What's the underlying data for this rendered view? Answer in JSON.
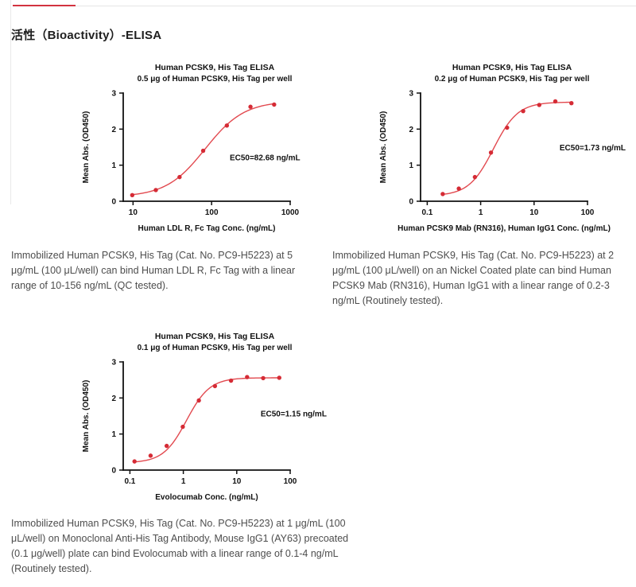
{
  "header": {
    "title": "活性（Bioactivity）-ELISA"
  },
  "tab_indicator": {
    "active_color": "#d2333f",
    "track_color": "#e5e5e5"
  },
  "figures": [
    {
      "caption": "Immobilized Human PCSK9, His Tag (Cat. No. PC9-H5223) at 5 μg/mL (100 μL/well) can bind Human LDL R, Fc Tag with a linear range of 10-156 ng/mL (QC tested)."
    },
    {
      "caption": "Immobilized Human PCSK9, His Tag (Cat. No. PC9-H5223) at 2 μg/mL (100 μL/well) on an Nickel Coated plate can bind Human PCSK9 Mab (RN316), Human IgG1 with a linear range of 0.2-3 ng/mL (Routinely tested)."
    },
    {
      "caption": "Immobilized Human PCSK9, His Tag (Cat. No. PC9-H5223) at 1 μg/mL (100 μL/well) on Monoclonal Anti-His Tag Antibody, Mouse IgG1 (AY63) precoated (0.1 μg/well) plate can bind Evolocumab with a linear range of 0.1-4 ng/mL (Routinely tested)."
    }
  ],
  "chart_data": [
    {
      "type": "scatter",
      "title": "Human PCSK9, His Tag ELISA",
      "subtitle": "0.5 μg of Human PCSK9, His Tag per well",
      "xlabel": "Human LDL R, Fc Tag Conc. (ng/mL)",
      "ylabel": "Mean Abs. (OD450)",
      "x_scale": "log",
      "x_range": [
        7.5,
        1000
      ],
      "x_ticks": [
        10,
        100,
        1000
      ],
      "y_range": [
        0,
        3
      ],
      "y_ticks": [
        0,
        1,
        2,
        3
      ],
      "grid": false,
      "legend": "none",
      "points": {
        "x": [
          9.77,
          19.5,
          39.1,
          78.1,
          156.3,
          312.5,
          625
        ],
        "y": [
          0.17,
          0.31,
          0.67,
          1.4,
          2.1,
          2.62,
          2.68
        ]
      },
      "fit_4pl": {
        "bottom": 0.12,
        "top": 2.78,
        "ec50": 82.68,
        "hill": 1.75
      },
      "annotation": "EC50=82.68 ng/mL",
      "annotation_pos": {
        "x_value": 170,
        "y_value": 1.2
      },
      "curve_color": "#e2494f",
      "point_color": "#d52b35"
    },
    {
      "type": "scatter",
      "title": "Human PCSK9, His Tag ELISA",
      "subtitle": "0.2 μg of Human PCSK9, His Tag per well",
      "xlabel": "Human PCSK9 Mab (RN316), Human IgG1 Conc. (ng/mL)",
      "ylabel": "Mean Abs. (OD450)",
      "x_scale": "log",
      "x_range": [
        0.075,
        100
      ],
      "x_ticks": [
        0.1,
        1,
        10,
        100
      ],
      "y_range": [
        0,
        3
      ],
      "y_ticks": [
        0,
        1,
        2,
        3
      ],
      "grid": false,
      "legend": "none",
      "points": {
        "x": [
          0.195,
          0.39,
          0.78,
          1.56,
          3.125,
          6.25,
          12.5,
          25,
          50
        ],
        "y": [
          0.2,
          0.35,
          0.67,
          1.35,
          2.04,
          2.5,
          2.67,
          2.77,
          2.72
        ]
      },
      "fit_4pl": {
        "bottom": 0.15,
        "top": 2.75,
        "ec50": 1.73,
        "hill": 1.9
      },
      "annotation": "EC50=1.73 ng/mL",
      "annotation_pos": {
        "x_value": 30,
        "y_value": 1.48
      },
      "curve_color": "#e2494f",
      "point_color": "#d52b35"
    },
    {
      "type": "scatter",
      "title": "Human PCSK9, His Tag ELISA",
      "subtitle": "0.1 μg of Human PCSK9, His Tag per well",
      "xlabel": "Evolocumab Conc. (ng/mL)",
      "ylabel": "Mean Abs. (OD450)",
      "x_scale": "log",
      "x_range": [
        0.075,
        100
      ],
      "x_ticks": [
        0.1,
        1,
        10,
        100
      ],
      "y_range": [
        0,
        3
      ],
      "y_ticks": [
        0,
        1,
        2,
        3
      ],
      "grid": false,
      "legend": "none",
      "points": {
        "x": [
          0.122,
          0.244,
          0.488,
          0.977,
          1.953,
          3.906,
          7.813,
          15.625,
          31.25,
          62.5
        ],
        "y": [
          0.24,
          0.4,
          0.67,
          1.2,
          1.93,
          2.33,
          2.48,
          2.58,
          2.55,
          2.56
        ]
      },
      "fit_4pl": {
        "bottom": 0.2,
        "top": 2.56,
        "ec50": 1.15,
        "hill": 2.0
      },
      "annotation": "EC50=1.15 ng/mL",
      "annotation_pos": {
        "x_value": 28,
        "y_value": 1.55
      },
      "curve_color": "#e2494f",
      "point_color": "#d52b35"
    }
  ]
}
